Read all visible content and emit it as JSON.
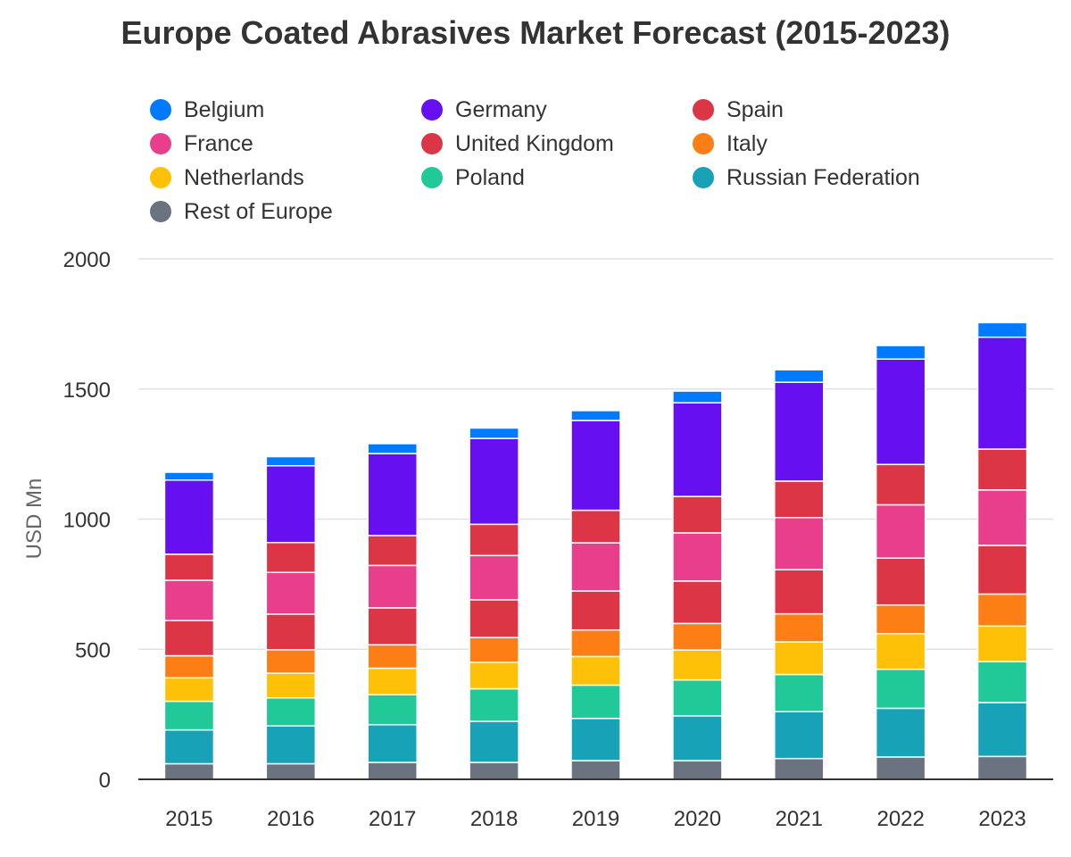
{
  "chart_data": {
    "type": "bar",
    "stacked": true,
    "title": "Europe Coated Abrasives Market Forecast (2015-2023)",
    "xlabel": "",
    "ylabel": "USD Mn",
    "ylim": [
      0,
      2000
    ],
    "yticks": [
      0,
      500,
      1000,
      1500,
      2000
    ],
    "grid": true,
    "legend_position": "top",
    "categories": [
      "2015",
      "2016",
      "2017",
      "2018",
      "2019",
      "2020",
      "2021",
      "2022",
      "2023"
    ],
    "series": [
      {
        "name": "Rest of Europe",
        "color": "#6b7280",
        "values": [
          60,
          60,
          65,
          65,
          72,
          72,
          80,
          86,
          88
        ]
      },
      {
        "name": "Russian Federation",
        "color": "#17a2b8",
        "values": [
          130,
          145,
          145,
          158,
          162,
          172,
          180,
          187,
          207
        ]
      },
      {
        "name": "Poland",
        "color": "#20c997",
        "values": [
          110,
          108,
          115,
          125,
          128,
          138,
          143,
          150,
          157
        ]
      },
      {
        "name": "Netherlands",
        "color": "#ffc107",
        "values": [
          90,
          95,
          102,
          102,
          110,
          115,
          125,
          137,
          137
        ]
      },
      {
        "name": "Italy",
        "color": "#fd7e14",
        "values": [
          85,
          90,
          90,
          95,
          102,
          102,
          108,
          110,
          123
        ]
      },
      {
        "name": "United Kingdom",
        "color": "#dc3545",
        "values": [
          135,
          137,
          142,
          145,
          150,
          163,
          170,
          180,
          187
        ]
      },
      {
        "name": "France",
        "color": "#e83e8c",
        "values": [
          155,
          160,
          163,
          170,
          185,
          185,
          200,
          205,
          213
        ]
      },
      {
        "name": "Spain",
        "color": "#dc3545",
        "values": [
          100,
          115,
          115,
          120,
          125,
          140,
          140,
          155,
          157
        ]
      },
      {
        "name": "Germany",
        "color": "#6610f2",
        "values": [
          285,
          295,
          315,
          330,
          345,
          360,
          380,
          405,
          430
        ]
      },
      {
        "name": "Belgium",
        "color": "#007bff",
        "values": [
          30,
          35,
          38,
          40,
          38,
          45,
          48,
          52,
          56
        ]
      }
    ],
    "legend": [
      {
        "name": "Belgium",
        "color": "#007bff"
      },
      {
        "name": "Germany",
        "color": "#6610f2"
      },
      {
        "name": "Spain",
        "color": "#dc3545"
      },
      {
        "name": "France",
        "color": "#e83e8c"
      },
      {
        "name": "United Kingdom",
        "color": "#dc3545"
      },
      {
        "name": "Italy",
        "color": "#fd7e14"
      },
      {
        "name": "Netherlands",
        "color": "#ffc107"
      },
      {
        "name": "Poland",
        "color": "#20c997"
      },
      {
        "name": "Russian Federation",
        "color": "#17a2b8"
      },
      {
        "name": "Rest of Europe",
        "color": "#6b7280"
      }
    ]
  }
}
